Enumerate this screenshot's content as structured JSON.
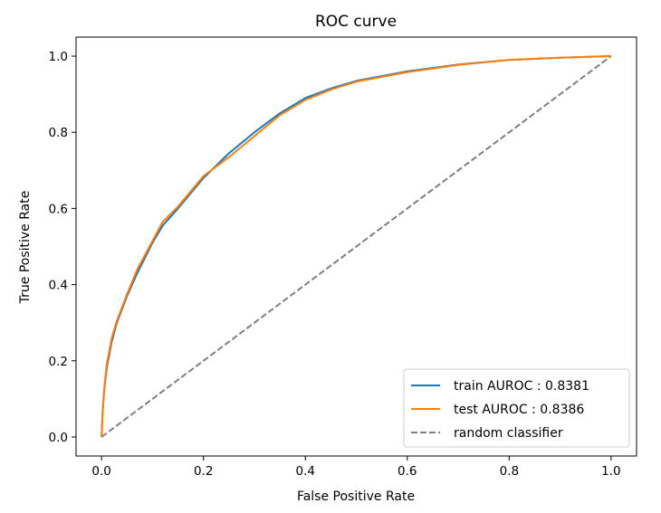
{
  "chart_data": {
    "type": "line",
    "title": "ROC curve",
    "xlabel": "False Positive Rate",
    "ylabel": "True Positive Rate",
    "xlim": [
      -0.05,
      1.05
    ],
    "ylim": [
      -0.05,
      1.05
    ],
    "xticks": [
      "0.0",
      "0.2",
      "0.4",
      "0.6",
      "0.8",
      "1.0"
    ],
    "yticks": [
      "0.0",
      "0.2",
      "0.4",
      "0.6",
      "0.8",
      "1.0"
    ],
    "grid": false,
    "legend_position": "lower-right",
    "series": [
      {
        "name": "train AUROC : 0.8381",
        "color": "#1f77b4",
        "style": "solid",
        "x": [
          0.0,
          0.002,
          0.005,
          0.01,
          0.02,
          0.03,
          0.05,
          0.07,
          0.1,
          0.12,
          0.15,
          0.2,
          0.25,
          0.3,
          0.35,
          0.4,
          0.45,
          0.5,
          0.6,
          0.7,
          0.8,
          0.9,
          1.0
        ],
        "y": [
          0.0,
          0.06,
          0.12,
          0.18,
          0.25,
          0.3,
          0.37,
          0.43,
          0.51,
          0.555,
          0.6,
          0.68,
          0.745,
          0.8,
          0.85,
          0.89,
          0.915,
          0.935,
          0.96,
          0.978,
          0.99,
          0.996,
          1.0
        ]
      },
      {
        "name": "test AUROC : 0.8386",
        "color": "#ff7f0e",
        "style": "solid",
        "x": [
          0.0,
          0.002,
          0.005,
          0.01,
          0.02,
          0.03,
          0.05,
          0.07,
          0.1,
          0.12,
          0.15,
          0.2,
          0.25,
          0.3,
          0.35,
          0.4,
          0.45,
          0.5,
          0.6,
          0.7,
          0.8,
          0.9,
          1.0
        ],
        "y": [
          0.0,
          0.065,
          0.125,
          0.19,
          0.26,
          0.305,
          0.375,
          0.44,
          0.515,
          0.565,
          0.605,
          0.685,
          0.735,
          0.79,
          0.845,
          0.885,
          0.912,
          0.933,
          0.958,
          0.977,
          0.99,
          0.996,
          1.0
        ]
      },
      {
        "name": "random classifier",
        "color": "#808080",
        "style": "dashed",
        "x": [
          0.0,
          1.0
        ],
        "y": [
          0.0,
          1.0
        ]
      }
    ]
  }
}
